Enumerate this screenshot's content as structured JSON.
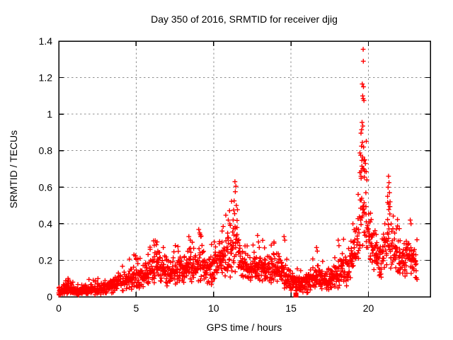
{
  "page": {
    "background": "#ffffff"
  },
  "chart_data": {
    "type": "scatter",
    "title": "Day 350 of 2016, SRMTID for receiver djig",
    "xlabel": "GPS time / hours",
    "ylabel": "SRMTID / TECUs",
    "xlim": [
      0,
      24
    ],
    "ylim": [
      0,
      1.4
    ],
    "xticks": [
      0,
      5,
      10,
      15,
      20
    ],
    "xtick_labels": [
      "0",
      "5",
      "10",
      "15",
      "20"
    ],
    "yticks": [
      0,
      0.2,
      0.4,
      0.6,
      0.8,
      1,
      1.2,
      1.4
    ],
    "ytick_labels": [
      "0",
      "0.2",
      "0.4",
      "0.6",
      "0.8",
      "1",
      "1.2",
      "1.4"
    ],
    "grid": "major, gray dashed, both axes",
    "legend": "none",
    "series": [
      {
        "name": "SRMTID",
        "marker": "plus",
        "color": "#ff0000"
      }
    ],
    "colors": {
      "marker": "#ff0000",
      "grid": "#8f8f8f",
      "axis": "#000000",
      "text": "#000000",
      "background": "#ffffff"
    },
    "x_data_range": [
      0,
      23.15
    ],
    "notable_points": {
      "max_spike": {
        "x": 19.66,
        "y": 1.355
      },
      "spike_11h": {
        "x": 11.4,
        "y": 0.63
      },
      "secondary_peak": {
        "x": 21.3,
        "y": 0.66
      },
      "square_outlier": {
        "x": 15.32,
        "y": 0.01,
        "marker": "filled-square"
      }
    },
    "density_profile_h_med_spread": [
      [
        0.0,
        0.035,
        0.02
      ],
      [
        0.45,
        0.04,
        0.022
      ],
      [
        0.62,
        0.052,
        0.028
      ],
      [
        0.85,
        0.038,
        0.02
      ],
      [
        1.3,
        0.03,
        0.016
      ],
      [
        1.9,
        0.042,
        0.022
      ],
      [
        2.4,
        0.038,
        0.02
      ],
      [
        2.9,
        0.05,
        0.026
      ],
      [
        3.3,
        0.055,
        0.03
      ],
      [
        3.8,
        0.07,
        0.034
      ],
      [
        4.3,
        0.082,
        0.038
      ],
      [
        4.9,
        0.115,
        0.05
      ],
      [
        5.2,
        0.105,
        0.048
      ],
      [
        5.6,
        0.12,
        0.055
      ],
      [
        6.0,
        0.14,
        0.06
      ],
      [
        6.35,
        0.165,
        0.07
      ],
      [
        6.8,
        0.15,
        0.068
      ],
      [
        7.2,
        0.125,
        0.055
      ],
      [
        7.7,
        0.155,
        0.065
      ],
      [
        8.1,
        0.15,
        0.065
      ],
      [
        8.45,
        0.175,
        0.075
      ],
      [
        8.8,
        0.165,
        0.07
      ],
      [
        9.1,
        0.19,
        0.08
      ],
      [
        9.6,
        0.15,
        0.06
      ],
      [
        10.05,
        0.175,
        0.075
      ],
      [
        10.6,
        0.2,
        0.09
      ],
      [
        10.95,
        0.23,
        0.1
      ],
      [
        11.15,
        0.24,
        0.105
      ],
      [
        11.35,
        0.33,
        0.15
      ],
      [
        11.55,
        0.26,
        0.115
      ],
      [
        11.8,
        0.185,
        0.075
      ],
      [
        12.3,
        0.15,
        0.055
      ],
      [
        12.9,
        0.17,
        0.065
      ],
      [
        13.4,
        0.14,
        0.055
      ],
      [
        13.9,
        0.16,
        0.065
      ],
      [
        14.35,
        0.14,
        0.06
      ],
      [
        14.8,
        0.11,
        0.05
      ],
      [
        15.3,
        0.07,
        0.035
      ],
      [
        15.8,
        0.075,
        0.04
      ],
      [
        16.2,
        0.09,
        0.048
      ],
      [
        16.6,
        0.12,
        0.06
      ],
      [
        17.0,
        0.09,
        0.048
      ],
      [
        17.45,
        0.085,
        0.045
      ],
      [
        18.1,
        0.13,
        0.06
      ],
      [
        18.6,
        0.16,
        0.07
      ],
      [
        19.0,
        0.22,
        0.09
      ],
      [
        19.3,
        0.32,
        0.13
      ],
      [
        19.55,
        0.45,
        0.195
      ],
      [
        19.75,
        0.48,
        0.2
      ],
      [
        20.0,
        0.38,
        0.15
      ],
      [
        20.3,
        0.27,
        0.1
      ],
      [
        20.65,
        0.21,
        0.08
      ],
      [
        20.95,
        0.235,
        0.09
      ],
      [
        21.2,
        0.32,
        0.13
      ],
      [
        21.35,
        0.36,
        0.15
      ],
      [
        21.55,
        0.28,
        0.11
      ],
      [
        21.85,
        0.22,
        0.08
      ],
      [
        22.2,
        0.19,
        0.075
      ],
      [
        22.6,
        0.215,
        0.088
      ],
      [
        23.0,
        0.17,
        0.068
      ],
      [
        23.15,
        0.15,
        0.06
      ]
    ],
    "outlier_points_xy": [
      [
        0.6,
        0.1
      ],
      [
        0.64,
        0.092
      ],
      [
        1.95,
        0.095
      ],
      [
        3.85,
        0.13
      ],
      [
        4.95,
        0.225
      ],
      [
        5.0,
        0.21
      ],
      [
        5.9,
        0.26
      ],
      [
        6.35,
        0.3
      ],
      [
        6.3,
        0.285
      ],
      [
        6.75,
        0.27
      ],
      [
        7.7,
        0.275
      ],
      [
        8.4,
        0.33
      ],
      [
        8.5,
        0.31
      ],
      [
        9.1,
        0.35
      ],
      [
        9.17,
        0.33
      ],
      [
        10.05,
        0.3
      ],
      [
        10.55,
        0.36
      ],
      [
        10.62,
        0.385
      ],
      [
        10.95,
        0.42
      ],
      [
        11.05,
        0.4
      ],
      [
        11.3,
        0.475
      ],
      [
        11.33,
        0.525
      ],
      [
        11.36,
        0.455
      ],
      [
        11.38,
        0.63
      ],
      [
        11.4,
        0.575
      ],
      [
        11.44,
        0.605
      ],
      [
        11.47,
        0.5
      ],
      [
        12.9,
        0.3
      ],
      [
        12.95,
        0.27
      ],
      [
        13.9,
        0.3
      ],
      [
        14.55,
        0.33
      ],
      [
        14.6,
        0.31
      ],
      [
        16.65,
        0.27
      ],
      [
        16.7,
        0.25
      ],
      [
        18.05,
        0.31
      ],
      [
        18.1,
        0.28
      ],
      [
        19.0,
        0.4
      ],
      [
        19.45,
        0.68
      ],
      [
        19.5,
        0.775
      ],
      [
        19.52,
        0.66
      ],
      [
        19.55,
        0.825
      ],
      [
        19.56,
        0.915
      ],
      [
        19.58,
        0.715
      ],
      [
        19.59,
        0.955
      ],
      [
        19.6,
        1.165
      ],
      [
        19.61,
        0.845
      ],
      [
        19.63,
        1.1
      ],
      [
        19.63,
        0.765
      ],
      [
        19.64,
        0.935
      ],
      [
        19.66,
        1.355
      ],
      [
        19.66,
        1.085
      ],
      [
        19.67,
        1.29
      ],
      [
        19.68,
        1.15
      ],
      [
        19.69,
        0.82
      ],
      [
        19.7,
        0.7
      ],
      [
        19.71,
        1.075
      ],
      [
        19.74,
        0.655
      ],
      [
        19.76,
        0.75
      ],
      [
        19.81,
        0.73
      ],
      [
        19.86,
        0.685
      ],
      [
        19.9,
        0.64
      ],
      [
        21.24,
        0.55
      ],
      [
        21.27,
        0.6
      ],
      [
        21.3,
        0.66
      ],
      [
        21.33,
        0.625
      ],
      [
        21.36,
        0.57
      ],
      [
        21.4,
        0.52
      ],
      [
        22.7,
        0.42
      ],
      [
        22.75,
        0.4
      ]
    ],
    "gen": {
      "seed": 1203,
      "step": 0.04,
      "per_step": 3,
      "tail_prob": 0.06,
      "spread_mult": 1.5,
      "tail_mult": 1.9,
      "x_jitter": 0.05
    }
  }
}
